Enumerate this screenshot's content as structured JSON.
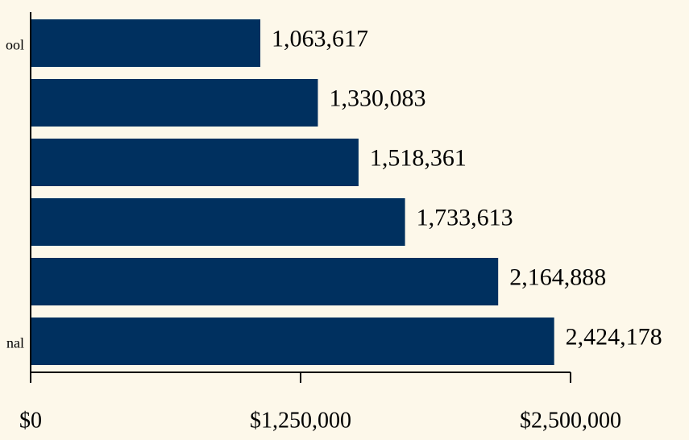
{
  "chart_data": {
    "type": "hbar",
    "categories": [
      "ool",
      null,
      null,
      null,
      null,
      "nal"
    ],
    "values": [
      1063617,
      1330083,
      1518361,
      1733613,
      2164888,
      2424178
    ],
    "value_labels": [
      "1,063,617",
      "1,330,083",
      "1,518,361",
      "1,733,613",
      "2,164,888",
      "2,424,178"
    ],
    "color": "#00305f",
    "xlim": [
      0,
      2500000
    ],
    "xticks": [
      {
        "value": 0,
        "label": "$0"
      },
      {
        "value": 1250000,
        "label": "$1,250,000"
      },
      {
        "value": 2500000,
        "label": "$2,500,000"
      }
    ],
    "grid": false
  }
}
